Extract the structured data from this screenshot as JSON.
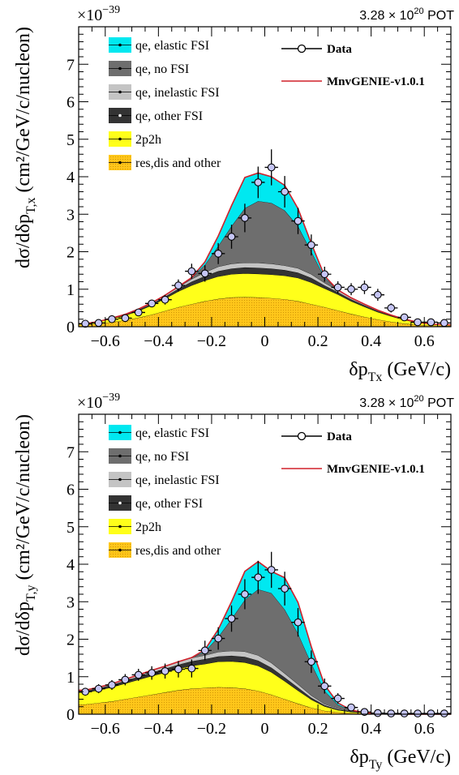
{
  "chart_data": [
    {
      "type": "area",
      "pot_label": "3.28 × 10",
      "pot_exponent": "20",
      "pot_unit": "POT",
      "y_multiplier": "×10",
      "y_exponent": "−39",
      "xlabel": "δp",
      "xlabel_sub": "Tx",
      "xlabel_unit": "(GeV/c)",
      "ylabel": "dσ/dδp",
      "ylabel_sub": "T,x",
      "ylabel_unit": "(cm²/GeV/c/nucleon)",
      "xlim": [
        -0.7,
        0.7
      ],
      "ylim": [
        0,
        8
      ],
      "x_ticks": [
        -0.6,
        -0.4,
        -0.2,
        0,
        0.2,
        0.4,
        0.6
      ],
      "x_tick_labels": [
        "−0.6",
        "−0.4",
        "−0.2",
        "0",
        "0.2",
        "0.4",
        "0.6"
      ],
      "y_ticks": [
        0,
        1,
        2,
        3,
        4,
        5,
        6,
        7
      ],
      "y_tick_labels": [
        "0",
        "1",
        "2",
        "3",
        "4",
        "5",
        "6",
        "7"
      ],
      "legend": {
        "stack_entries": [
          "qe, elastic FSI",
          "qe, no FSI",
          "qe, inelastic FSI",
          "qe, other FSI",
          "2p2h",
          "res,dis and other"
        ],
        "data_entry": "Data",
        "mc_entry": "MnvGENIE-v1.0.1"
      },
      "colors": {
        "qe_elastic": "#00e8f0",
        "qe_nofsi": "#6e6e6e",
        "qe_inelastic": "#c4c4c4",
        "qe_other": "#333333",
        "p2h": "#ffff1a",
        "res": "#ffc61a",
        "mc_line": "#d0202a",
        "data_marker": "#c6c6f6"
      },
      "x": [
        -0.675,
        -0.625,
        -0.575,
        -0.525,
        -0.475,
        -0.425,
        -0.375,
        -0.325,
        -0.275,
        -0.225,
        -0.175,
        -0.125,
        -0.075,
        -0.025,
        0.025,
        0.075,
        0.125,
        0.175,
        0.225,
        0.275,
        0.325,
        0.375,
        0.425,
        0.475,
        0.525,
        0.575,
        0.625,
        0.675
      ],
      "stack": {
        "res": [
          0.05,
          0.08,
          0.12,
          0.17,
          0.24,
          0.32,
          0.42,
          0.52,
          0.6,
          0.68,
          0.74,
          0.78,
          0.79,
          0.78,
          0.76,
          0.73,
          0.68,
          0.6,
          0.52,
          0.43,
          0.34,
          0.26,
          0.19,
          0.13,
          0.08,
          0.05,
          0.03,
          0.02
        ],
        "p2h": [
          0.03,
          0.06,
          0.09,
          0.13,
          0.18,
          0.25,
          0.33,
          0.42,
          0.5,
          0.55,
          0.6,
          0.62,
          0.63,
          0.63,
          0.63,
          0.63,
          0.62,
          0.58,
          0.5,
          0.43,
          0.34,
          0.27,
          0.2,
          0.15,
          0.1,
          0.06,
          0.04,
          0.03
        ],
        "qe_other": [
          0.0,
          0.0,
          0.01,
          0.02,
          0.03,
          0.04,
          0.05,
          0.07,
          0.1,
          0.12,
          0.14,
          0.15,
          0.16,
          0.16,
          0.16,
          0.15,
          0.14,
          0.12,
          0.08,
          0.06,
          0.05,
          0.04,
          0.03,
          0.02,
          0.01,
          0.01,
          0.0,
          0.0
        ],
        "qe_inelastic": [
          0.0,
          0.0,
          0.01,
          0.01,
          0.02,
          0.03,
          0.04,
          0.05,
          0.07,
          0.1,
          0.12,
          0.13,
          0.13,
          0.13,
          0.13,
          0.12,
          0.12,
          0.1,
          0.07,
          0.05,
          0.04,
          0.03,
          0.02,
          0.01,
          0.01,
          0.0,
          0.0,
          0.0
        ],
        "qe_nofsi": [
          0.0,
          0.0,
          0.0,
          0.0,
          0.0,
          0.0,
          0.0,
          0.01,
          0.03,
          0.2,
          0.55,
          1.0,
          1.45,
          1.65,
          1.62,
          1.47,
          1.12,
          0.6,
          0.13,
          0.01,
          0.0,
          0.0,
          0.0,
          0.0,
          0.0,
          0.0,
          0.0,
          0.0
        ],
        "qe_elastic": [
          0.0,
          0.0,
          0.0,
          0.0,
          0.0,
          0.0,
          0.0,
          0.0,
          0.01,
          0.08,
          0.27,
          0.55,
          0.82,
          0.75,
          0.7,
          0.67,
          0.47,
          0.22,
          0.05,
          0.0,
          0.0,
          0.0,
          0.0,
          0.0,
          0.0,
          0.0,
          0.0,
          0.0
        ]
      },
      "mc_total": [
        0.08,
        0.14,
        0.23,
        0.33,
        0.47,
        0.64,
        0.84,
        1.07,
        1.31,
        1.73,
        2.42,
        3.23,
        3.98,
        4.1,
        4.0,
        3.77,
        3.15,
        2.22,
        1.35,
        0.98,
        0.77,
        0.6,
        0.44,
        0.31,
        0.2,
        0.12,
        0.07,
        0.05
      ],
      "data": {
        "y": [
          0.08,
          0.1,
          0.2,
          0.23,
          0.38,
          0.62,
          0.72,
          1.1,
          1.48,
          1.42,
          1.95,
          2.4,
          2.9,
          3.85,
          4.25,
          3.6,
          2.82,
          2.18,
          1.4,
          1.05,
          1.0,
          1.05,
          0.85,
          0.5,
          0.25,
          0.12,
          0.12,
          0.1
        ],
        "err": [
          0.05,
          0.05,
          0.06,
          0.07,
          0.08,
          0.1,
          0.13,
          0.16,
          0.2,
          0.22,
          0.28,
          0.32,
          0.38,
          0.42,
          0.48,
          0.42,
          0.35,
          0.28,
          0.2,
          0.16,
          0.16,
          0.18,
          0.16,
          0.12,
          0.08,
          0.06,
          0.05,
          0.05
        ]
      }
    },
    {
      "type": "area",
      "pot_label": "3.28 × 10",
      "pot_exponent": "20",
      "pot_unit": "POT",
      "y_multiplier": "×10",
      "y_exponent": "−39",
      "xlabel": "δp",
      "xlabel_sub": "Ty",
      "xlabel_unit": "(GeV/c)",
      "ylabel": "dσ/dδp",
      "ylabel_sub": "T,y",
      "ylabel_unit": "(cm²/GeV/c/nucleon)",
      "xlim": [
        -0.7,
        0.7
      ],
      "ylim": [
        0,
        8
      ],
      "x_ticks": [
        -0.6,
        -0.4,
        -0.2,
        0,
        0.2,
        0.4,
        0.6
      ],
      "x_tick_labels": [
        "−0.6",
        "−0.4",
        "−0.2",
        "0",
        "0.2",
        "0.4",
        "0.6"
      ],
      "y_ticks": [
        0,
        1,
        2,
        3,
        4,
        5,
        6,
        7
      ],
      "y_tick_labels": [
        "0",
        "1",
        "2",
        "3",
        "4",
        "5",
        "6",
        "7"
      ],
      "legend": {
        "stack_entries": [
          "qe, elastic FSI",
          "qe, no FSI",
          "qe, inelastic FSI",
          "qe, other FSI",
          "2p2h",
          "res,dis and other"
        ],
        "data_entry": "Data",
        "mc_entry": "MnvGENIE-v1.0.1"
      },
      "colors": {
        "qe_elastic": "#00e8f0",
        "qe_nofsi": "#6e6e6e",
        "qe_inelastic": "#c4c4c4",
        "qe_other": "#333333",
        "p2h": "#ffff1a",
        "res": "#ffc61a",
        "mc_line": "#d0202a",
        "data_marker": "#c6c6f6"
      },
      "x": [
        -0.675,
        -0.625,
        -0.575,
        -0.525,
        -0.475,
        -0.425,
        -0.375,
        -0.325,
        -0.275,
        -0.225,
        -0.175,
        -0.125,
        -0.075,
        -0.025,
        0.025,
        0.075,
        0.125,
        0.175,
        0.225,
        0.275,
        0.325,
        0.375,
        0.425,
        0.475,
        0.525,
        0.575,
        0.625,
        0.675
      ],
      "stack": {
        "res": [
          0.26,
          0.3,
          0.34,
          0.4,
          0.46,
          0.52,
          0.58,
          0.64,
          0.68,
          0.7,
          0.72,
          0.71,
          0.68,
          0.62,
          0.52,
          0.4,
          0.28,
          0.17,
          0.09,
          0.05,
          0.03,
          0.02,
          0.01,
          0.01,
          0.0,
          0.0,
          0.0,
          0.0
        ],
        "p2h": [
          0.32,
          0.34,
          0.38,
          0.42,
          0.46,
          0.5,
          0.53,
          0.57,
          0.61,
          0.64,
          0.68,
          0.7,
          0.7,
          0.67,
          0.6,
          0.48,
          0.35,
          0.22,
          0.12,
          0.06,
          0.03,
          0.02,
          0.01,
          0.0,
          0.0,
          0.0,
          0.0,
          0.0
        ],
        "qe_other": [
          0.04,
          0.05,
          0.06,
          0.07,
          0.08,
          0.09,
          0.1,
          0.11,
          0.12,
          0.13,
          0.14,
          0.15,
          0.15,
          0.14,
          0.12,
          0.1,
          0.08,
          0.05,
          0.03,
          0.02,
          0.01,
          0.0,
          0.0,
          0.0,
          0.0,
          0.0,
          0.0,
          0.0
        ],
        "qe_inelastic": [
          0.02,
          0.03,
          0.03,
          0.04,
          0.05,
          0.06,
          0.07,
          0.08,
          0.09,
          0.1,
          0.12,
          0.13,
          0.14,
          0.14,
          0.13,
          0.11,
          0.09,
          0.06,
          0.03,
          0.02,
          0.01,
          0.0,
          0.0,
          0.0,
          0.0,
          0.0,
          0.0,
          0.0
        ],
        "qe_nofsi": [
          0.0,
          0.0,
          0.0,
          0.0,
          0.0,
          0.0,
          0.0,
          0.0,
          0.01,
          0.1,
          0.4,
          0.85,
          1.38,
          1.76,
          1.86,
          1.7,
          1.35,
          0.85,
          0.35,
          0.1,
          0.02,
          0.0,
          0.0,
          0.0,
          0.0,
          0.0,
          0.0,
          0.0
        ],
        "qe_elastic": [
          0.0,
          0.0,
          0.0,
          0.0,
          0.0,
          0.0,
          0.0,
          0.0,
          0.0,
          0.05,
          0.2,
          0.46,
          0.76,
          0.74,
          0.58,
          0.85,
          0.83,
          0.45,
          0.16,
          0.05,
          0.01,
          0.0,
          0.0,
          0.0,
          0.0,
          0.0,
          0.0,
          0.0
        ]
      },
      "mc_total": [
        0.64,
        0.72,
        0.81,
        0.93,
        1.05,
        1.17,
        1.28,
        1.4,
        1.51,
        1.72,
        2.26,
        3.0,
        3.81,
        4.07,
        3.81,
        3.64,
        2.98,
        1.8,
        0.78,
        0.3,
        0.11,
        0.04,
        0.02,
        0.01,
        0.0,
        0.0,
        0.0,
        0.0
      ],
      "data": {
        "y": [
          0.6,
          0.68,
          0.78,
          0.92,
          1.05,
          1.1,
          1.15,
          1.2,
          1.22,
          1.7,
          2.02,
          2.55,
          3.2,
          3.65,
          3.85,
          3.35,
          2.45,
          1.4,
          0.75,
          0.42,
          0.18,
          0.06,
          0.03,
          0.02,
          0.02,
          0.02,
          0.02,
          0.02
        ],
        "err": [
          0.1,
          0.12,
          0.13,
          0.15,
          0.16,
          0.18,
          0.2,
          0.22,
          0.24,
          0.26,
          0.3,
          0.35,
          0.4,
          0.44,
          0.48,
          0.45,
          0.38,
          0.3,
          0.2,
          0.14,
          0.08,
          0.05,
          0.04,
          0.03,
          0.03,
          0.03,
          0.03,
          0.03
        ]
      }
    }
  ]
}
